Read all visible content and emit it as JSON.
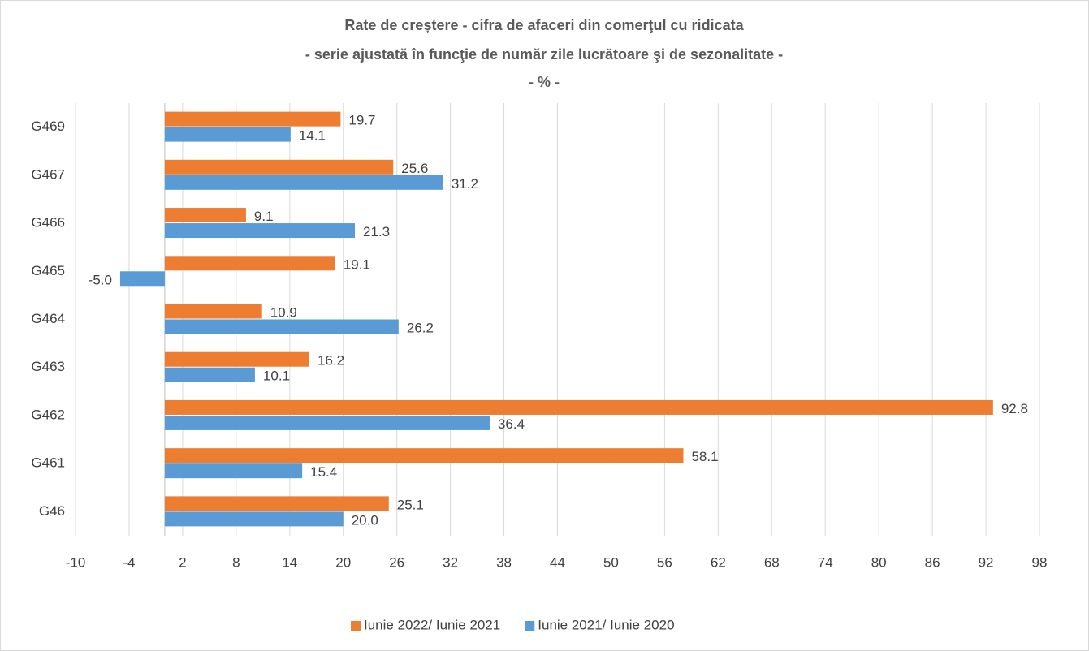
{
  "chart_data": {
    "type": "hbar",
    "title": "Rate de creștere - cifra de afaceri din comerţul cu ridicata",
    "subtitle": "- serie ajustată în funcţie de număr zile lucrătoare şi de sezonalitate -",
    "unit_label": "- % -",
    "categories": [
      "G469",
      "G467",
      "G466",
      "G465",
      "G464",
      "G463",
      "G462",
      "G461",
      "G46"
    ],
    "series": [
      {
        "name": "Iunie 2022/ Iunie 2021",
        "color": "#ed7d31",
        "values": [
          19.7,
          25.6,
          9.1,
          19.1,
          10.9,
          16.2,
          92.8,
          58.1,
          25.1
        ],
        "value_labels": [
          "19.7",
          "25.6",
          "9.1",
          "19.1",
          "10.9",
          "16.2",
          "92.8",
          "58.1",
          "25.1"
        ]
      },
      {
        "name": "Iunie 2021/ Iunie 2020",
        "color": "#5b9bd5",
        "values": [
          14.1,
          31.2,
          21.3,
          -5.0,
          26.2,
          10.1,
          36.4,
          15.4,
          20.0
        ],
        "value_labels": [
          "14.1",
          "31.2",
          "21.3",
          "-5.0",
          "26.2",
          "10.1",
          "36.4",
          "15.4",
          "20.0"
        ]
      }
    ],
    "xlim": [
      -10,
      98
    ],
    "xticks": [
      -10,
      -4,
      2,
      8,
      14,
      20,
      26,
      32,
      38,
      44,
      50,
      56,
      62,
      68,
      74,
      80,
      86,
      92,
      98
    ],
    "grid": true,
    "legend": "bottom"
  }
}
